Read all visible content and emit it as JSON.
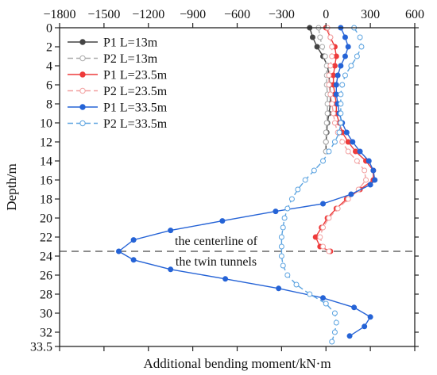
{
  "chart_data": {
    "type": "line",
    "xlabel": "Additional bending moment/kN·m",
    "ylabel": "Depth/m",
    "xlim": [
      -1800,
      600
    ],
    "ylim": [
      0,
      33.5
    ],
    "y_inverted": true,
    "x_ticks": [
      -1800,
      -1500,
      -1200,
      -900,
      -600,
      -300,
      0,
      300,
      600
    ],
    "y_ticks": [
      0,
      2,
      4,
      6,
      8,
      10,
      12,
      14,
      16,
      18,
      20,
      22,
      24,
      26,
      28,
      30,
      32,
      33.5
    ],
    "x_axis_position": "top",
    "legend_position": "top-left",
    "grid": false,
    "annotation": {
      "lines": [
        "the centerline of",
        "the twin tunnels"
      ],
      "depth": 23.5,
      "line_style": "dashed",
      "line_color": "#666666"
    },
    "series": [
      {
        "name": "P1 L=13m",
        "color": "#444444",
        "line_style": "solid",
        "marker": "filled",
        "points": [
          [
            -110,
            0
          ],
          [
            -90,
            1
          ],
          [
            -60,
            2
          ],
          [
            -20,
            3
          ],
          [
            10,
            4
          ],
          [
            20,
            5
          ],
          [
            25,
            6
          ],
          [
            30,
            7
          ],
          [
            30,
            8
          ],
          [
            20,
            9
          ],
          [
            10,
            10
          ],
          [
            5,
            11
          ],
          [
            0,
            12
          ],
          [
            0,
            13
          ]
        ]
      },
      {
        "name": "P2 L=13m",
        "color": "#aaaaaa",
        "line_style": "dashed",
        "marker": "hollow",
        "points": [
          [
            -50,
            0
          ],
          [
            -40,
            1
          ],
          [
            -25,
            2
          ],
          [
            -5,
            3
          ],
          [
            5,
            4
          ],
          [
            5,
            5
          ],
          [
            5,
            6
          ],
          [
            10,
            7
          ],
          [
            10,
            8
          ],
          [
            10,
            9
          ],
          [
            5,
            10
          ],
          [
            0,
            11
          ],
          [
            0,
            12
          ],
          [
            0,
            13
          ]
        ]
      },
      {
        "name": "P1 L=23.5m",
        "color": "#ee3b3b",
        "line_style": "solid",
        "marker": "filled",
        "points": [
          [
            0,
            0
          ],
          [
            30,
            1
          ],
          [
            60,
            2
          ],
          [
            70,
            3
          ],
          [
            60,
            4
          ],
          [
            50,
            5
          ],
          [
            50,
            6
          ],
          [
            60,
            7
          ],
          [
            70,
            8
          ],
          [
            70,
            9
          ],
          [
            90,
            10
          ],
          [
            110,
            11
          ],
          [
            150,
            12
          ],
          [
            200,
            13
          ],
          [
            270,
            14
          ],
          [
            320,
            15
          ],
          [
            320,
            16
          ],
          [
            230,
            17
          ],
          [
            140,
            18
          ],
          [
            70,
            19
          ],
          [
            10,
            20
          ],
          [
            -30,
            21
          ],
          [
            -70,
            22
          ],
          [
            -40,
            23
          ],
          [
            30,
            23.5
          ]
        ]
      },
      {
        "name": "P2 L=23.5m",
        "color": "#f2a0a0",
        "line_style": "dashed",
        "marker": "hollow",
        "points": [
          [
            10,
            0
          ],
          [
            30,
            1
          ],
          [
            40,
            2
          ],
          [
            40,
            3
          ],
          [
            30,
            4
          ],
          [
            20,
            5
          ],
          [
            20,
            6
          ],
          [
            30,
            7
          ],
          [
            40,
            8
          ],
          [
            50,
            9
          ],
          [
            60,
            10
          ],
          [
            80,
            11
          ],
          [
            110,
            12
          ],
          [
            150,
            13
          ],
          [
            210,
            14
          ],
          [
            260,
            15
          ],
          [
            270,
            16
          ],
          [
            220,
            17
          ],
          [
            150,
            18
          ],
          [
            80,
            19
          ],
          [
            20,
            20
          ],
          [
            -20,
            21
          ],
          [
            -40,
            22
          ],
          [
            -20,
            23
          ],
          [
            20,
            23.5
          ]
        ]
      },
      {
        "name": "P1 L=33.5m",
        "color": "#2563d6",
        "line_style": "solid",
        "marker": "filled",
        "points": [
          [
            100,
            0
          ],
          [
            130,
            1
          ],
          [
            150,
            2
          ],
          [
            130,
            3
          ],
          [
            100,
            4
          ],
          [
            80,
            5
          ],
          [
            70,
            6
          ],
          [
            70,
            7
          ],
          [
            80,
            8
          ],
          [
            90,
            9
          ],
          [
            110,
            10
          ],
          [
            140,
            11
          ],
          [
            180,
            12
          ],
          [
            230,
            13
          ],
          [
            290,
            14
          ],
          [
            320,
            15
          ],
          [
            330,
            16
          ],
          [
            300,
            16.5
          ],
          [
            170,
            17.5
          ],
          [
            -20,
            18.5
          ],
          [
            -340,
            19.3
          ],
          [
            -700,
            20.3
          ],
          [
            -1050,
            21.3
          ],
          [
            -1300,
            22.3
          ],
          [
            -1400,
            23.5
          ],
          [
            -1300,
            24.4
          ],
          [
            -1050,
            25.4
          ],
          [
            -680,
            26.4
          ],
          [
            -320,
            27.4
          ],
          [
            -20,
            28.4
          ],
          [
            190,
            29.4
          ],
          [
            300,
            30.4
          ],
          [
            260,
            31.4
          ],
          [
            160,
            32.4
          ]
        ]
      },
      {
        "name": "P2 L=33.5m",
        "color": "#5ba3e0",
        "line_style": "dashed",
        "marker": "hollow",
        "points": [
          [
            190,
            0
          ],
          [
            230,
            1
          ],
          [
            240,
            2
          ],
          [
            210,
            3
          ],
          [
            170,
            4
          ],
          [
            130,
            5
          ],
          [
            110,
            6
          ],
          [
            100,
            7
          ],
          [
            100,
            8
          ],
          [
            100,
            9
          ],
          [
            100,
            10
          ],
          [
            90,
            11
          ],
          [
            60,
            12
          ],
          [
            20,
            13
          ],
          [
            -20,
            14
          ],
          [
            -80,
            15
          ],
          [
            -140,
            16
          ],
          [
            -190,
            17
          ],
          [
            -230,
            18
          ],
          [
            -260,
            19
          ],
          [
            -280,
            20
          ],
          [
            -290,
            21
          ],
          [
            -300,
            22
          ],
          [
            -300,
            23
          ],
          [
            -300,
            24
          ],
          [
            -290,
            25
          ],
          [
            -260,
            26
          ],
          [
            -200,
            27
          ],
          [
            -110,
            28
          ],
          [
            0,
            29
          ],
          [
            60,
            30
          ],
          [
            70,
            31
          ],
          [
            60,
            32
          ],
          [
            40,
            33
          ]
        ]
      }
    ]
  }
}
